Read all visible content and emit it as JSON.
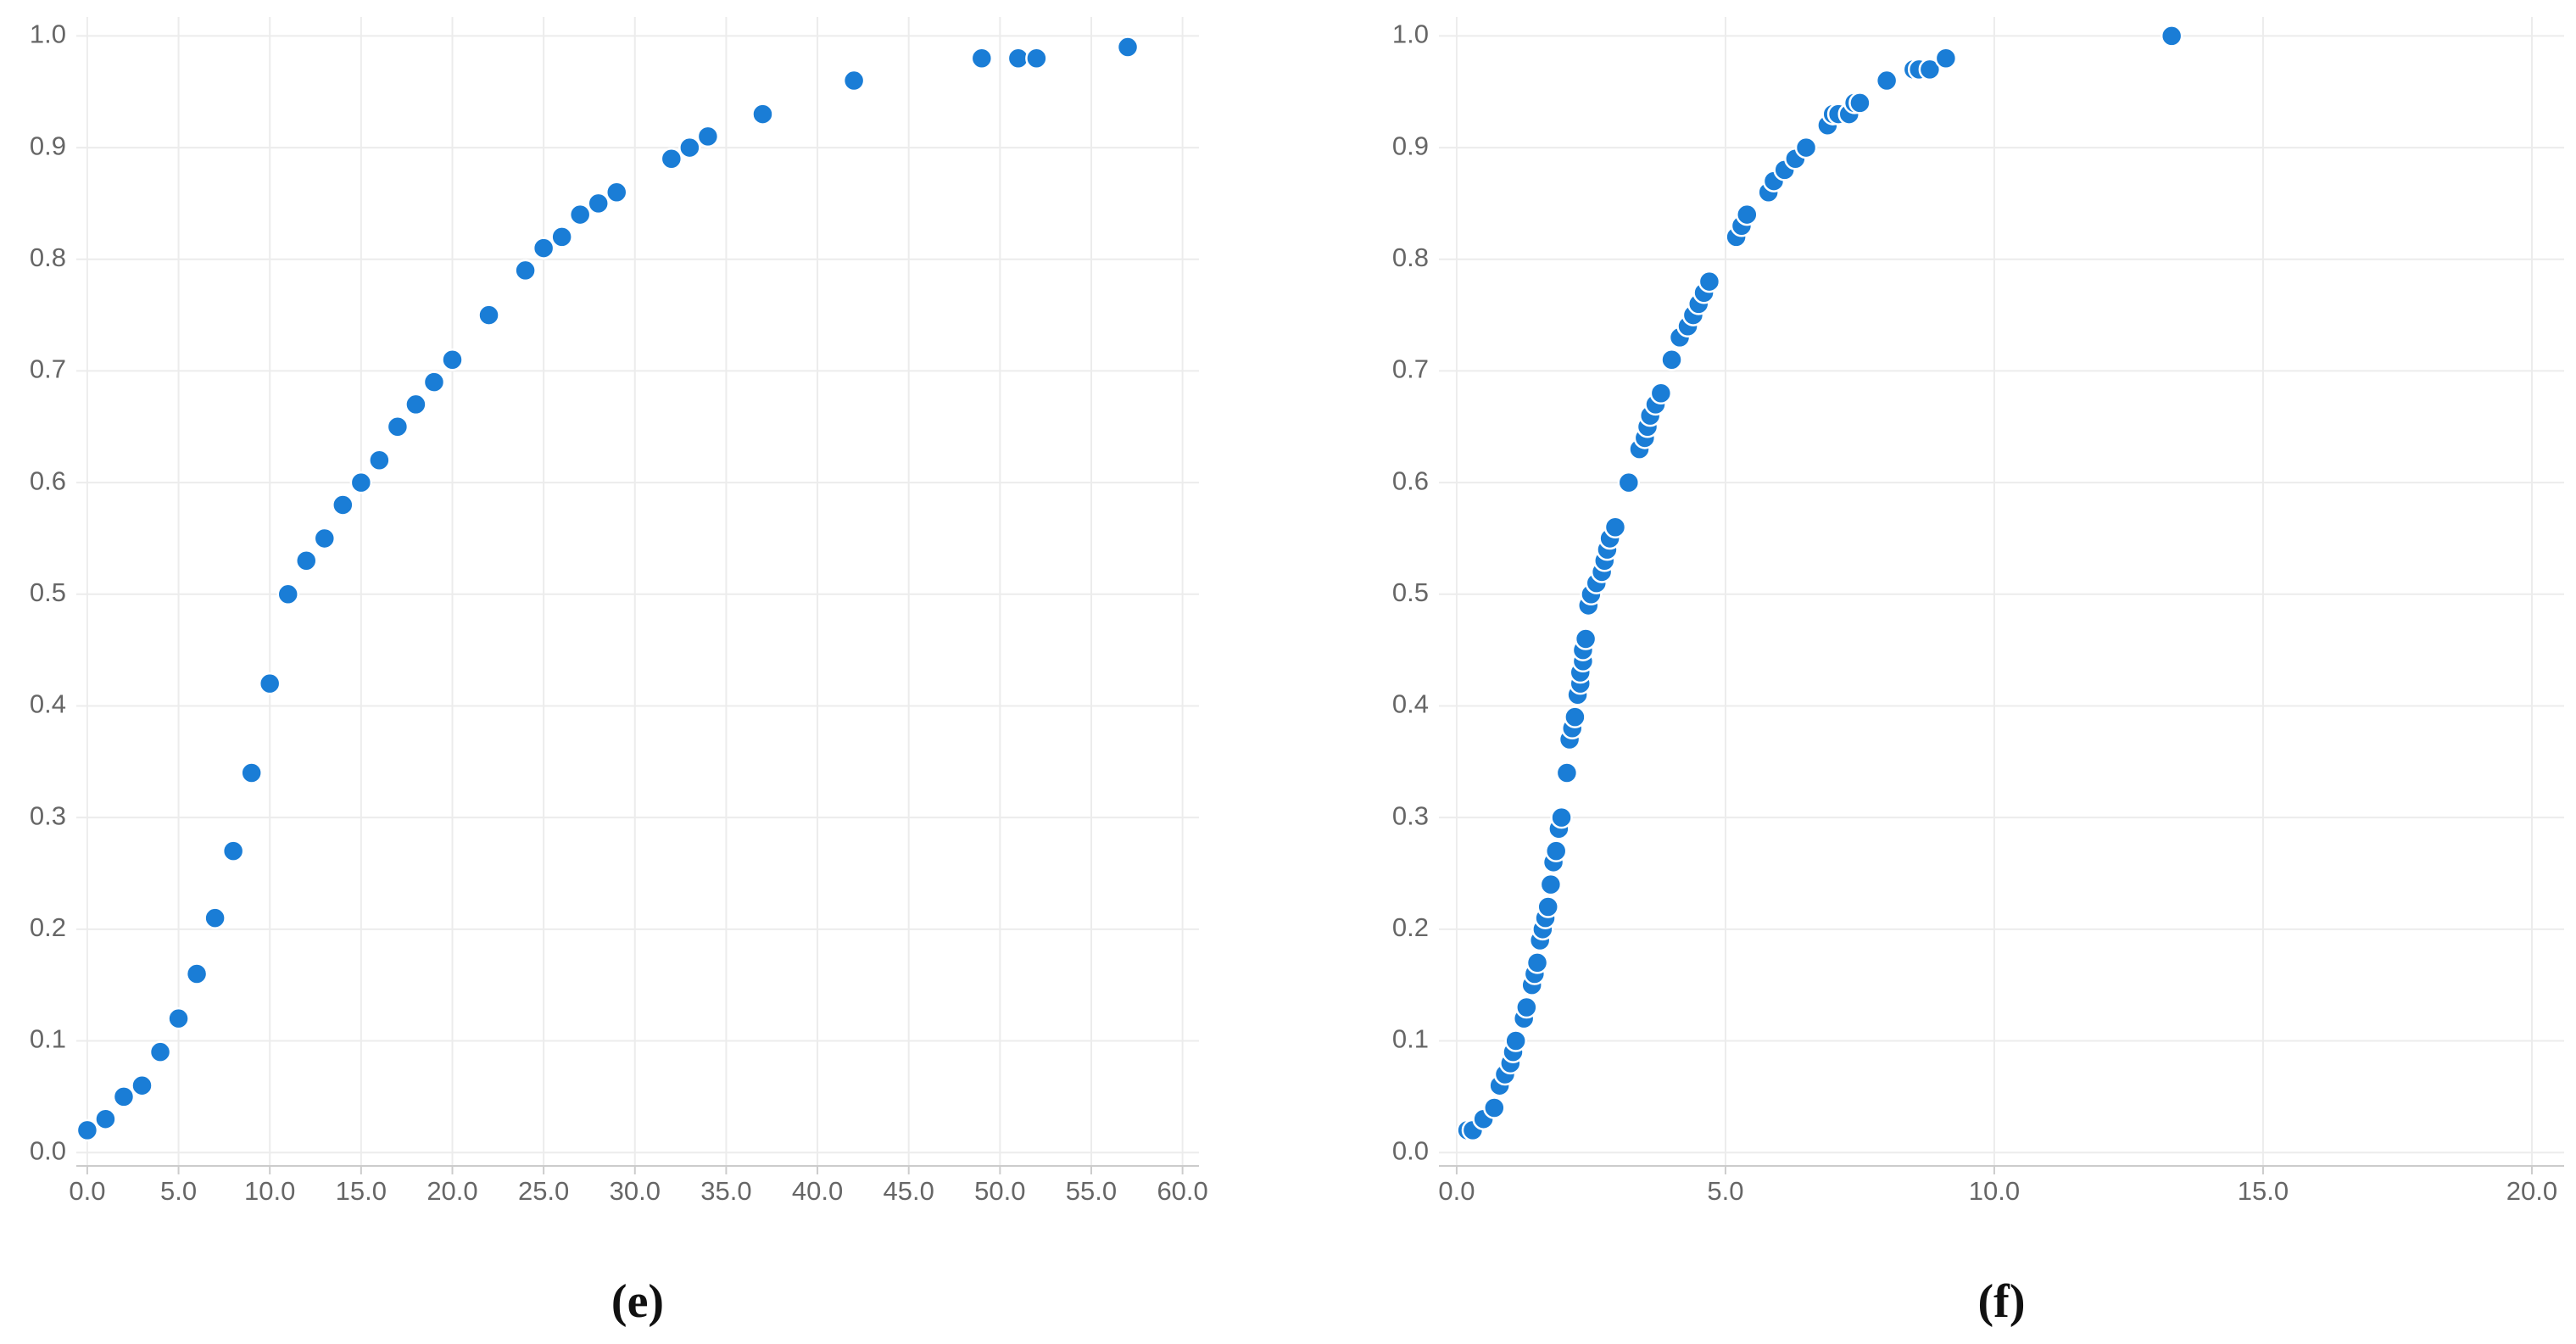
{
  "chart_data": [
    {
      "type": "scatter",
      "caption": "(e)",
      "color": "#1a7dd6",
      "grid": true,
      "x": [
        0,
        1,
        2,
        3,
        4,
        5,
        6,
        7,
        8,
        9,
        10,
        11,
        12,
        13,
        14,
        15,
        16,
        17,
        18,
        19,
        20,
        22,
        24,
        25,
        26,
        27,
        28,
        29,
        32,
        33,
        34,
        37,
        42,
        49,
        51,
        52,
        57
      ],
      "values": [
        0.02,
        0.03,
        0.05,
        0.06,
        0.09,
        0.12,
        0.16,
        0.21,
        0.27,
        0.34,
        0.42,
        0.5,
        0.53,
        0.55,
        0.58,
        0.6,
        0.62,
        0.65,
        0.67,
        0.69,
        0.71,
        0.75,
        0.79,
        0.81,
        0.82,
        0.84,
        0.85,
        0.86,
        0.89,
        0.9,
        0.91,
        0.93,
        0.96,
        0.98,
        0.98,
        0.98,
        0.99
      ],
      "xlim": [
        -0.6,
        60.9
      ],
      "ylim": [
        -0.012,
        1.017
      ],
      "xticks": [
        {
          "value": 0,
          "label": "0.0"
        },
        {
          "value": 5,
          "label": "5.0"
        },
        {
          "value": 10,
          "label": "10.0"
        },
        {
          "value": 15,
          "label": "15.0"
        },
        {
          "value": 20,
          "label": "20.0"
        },
        {
          "value": 25,
          "label": "25.0"
        },
        {
          "value": 30,
          "label": "30.0"
        },
        {
          "value": 35,
          "label": "35.0"
        },
        {
          "value": 40,
          "label": "40.0"
        },
        {
          "value": 45,
          "label": "45.0"
        },
        {
          "value": 50,
          "label": "50.0"
        },
        {
          "value": 55,
          "label": "55.0"
        },
        {
          "value": 60,
          "label": "60.0"
        }
      ],
      "yticks": [
        {
          "value": 0,
          "label": "0.0"
        },
        0.1,
        0.2,
        0.3,
        0.4,
        0.5,
        0.6,
        0.7,
        0.8,
        0.9,
        {
          "value": 1,
          "label": "1.0"
        }
      ]
    },
    {
      "type": "scatter",
      "caption": "(f)",
      "color": "#1a7dd6",
      "grid": true,
      "x": [
        0.2,
        0.3,
        0.5,
        0.7,
        0.8,
        0.9,
        1.0,
        1.05,
        1.1,
        1.25,
        1.3,
        1.4,
        1.45,
        1.5,
        1.55,
        1.6,
        1.65,
        1.7,
        1.75,
        1.8,
        1.85,
        1.9,
        1.95,
        2.05,
        2.1,
        2.15,
        2.2,
        2.25,
        2.3,
        2.3,
        2.35,
        2.35,
        2.4,
        2.45,
        2.5,
        2.6,
        2.7,
        2.75,
        2.8,
        2.85,
        2.95,
        3.2,
        3.4,
        3.5,
        3.55,
        3.6,
        3.7,
        3.8,
        4.0,
        4.15,
        4.3,
        4.4,
        4.5,
        4.6,
        4.7,
        5.2,
        5.3,
        5.4,
        5.8,
        5.9,
        6.1,
        6.3,
        6.5,
        6.9,
        7.0,
        7.1,
        7.3,
        7.4,
        7.5,
        8.0,
        8.5,
        8.6,
        8.8,
        9.1,
        13.3
      ],
      "values": [
        0.02,
        0.02,
        0.03,
        0.04,
        0.06,
        0.07,
        0.08,
        0.09,
        0.1,
        0.12,
        0.13,
        0.15,
        0.16,
        0.17,
        0.19,
        0.2,
        0.21,
        0.22,
        0.24,
        0.26,
        0.27,
        0.29,
        0.3,
        0.34,
        0.37,
        0.38,
        0.39,
        0.41,
        0.42,
        0.43,
        0.44,
        0.45,
        0.46,
        0.49,
        0.5,
        0.51,
        0.52,
        0.53,
        0.54,
        0.55,
        0.56,
        0.6,
        0.63,
        0.64,
        0.65,
        0.66,
        0.67,
        0.68,
        0.71,
        0.73,
        0.74,
        0.75,
        0.76,
        0.77,
        0.78,
        0.82,
        0.83,
        0.84,
        0.86,
        0.87,
        0.88,
        0.89,
        0.9,
        0.92,
        0.93,
        0.93,
        0.93,
        0.94,
        0.94,
        0.96,
        0.97,
        0.97,
        0.97,
        0.98,
        1.0
      ],
      "xlim": [
        -0.33,
        20.6
      ],
      "ylim": [
        -0.012,
        1.017
      ],
      "xticks": [
        {
          "value": 0,
          "label": "0.0"
        },
        {
          "value": 5,
          "label": "5.0"
        },
        {
          "value": 10,
          "label": "10.0"
        },
        {
          "value": 15,
          "label": "15.0"
        },
        {
          "value": 20,
          "label": "20.0"
        }
      ],
      "yticks": [
        {
          "value": 0,
          "label": "0.0"
        },
        0.1,
        0.2,
        0.3,
        0.4,
        0.5,
        0.6,
        0.7,
        0.8,
        0.9,
        {
          "value": 1,
          "label": "1.0"
        }
      ]
    }
  ]
}
